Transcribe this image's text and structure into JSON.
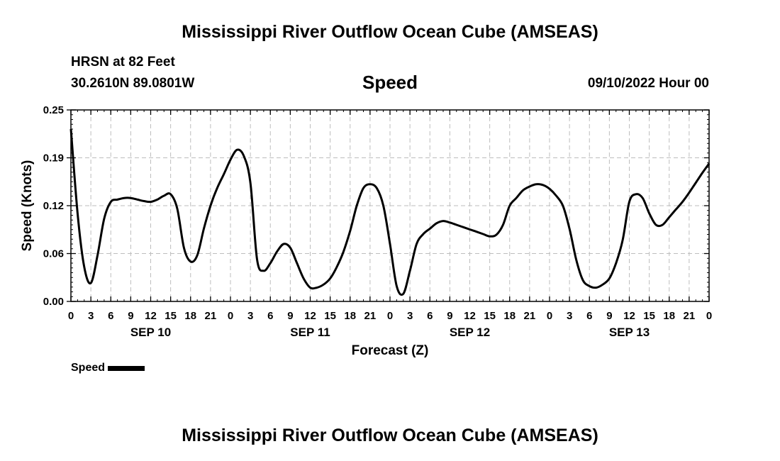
{
  "page": {
    "title": "Mississippi River Outflow Ocean Cube (AMSEAS)",
    "title_repeat": "Mississippi River Outflow Ocean Cube (AMSEAS)",
    "station": "HRSN at 82 Feet",
    "coords": "30.2610N  89.0801W",
    "datetime": "09/10/2022 Hour 00"
  },
  "chart_data": {
    "type": "line",
    "title": "Speed",
    "xlabel": "Forecast (Z)",
    "ylabel": "Speed (Knots)",
    "ylim": [
      0,
      0.25
    ],
    "xlim": [
      0,
      96
    ],
    "y_ticks": [
      "0.00",
      "0.06",
      "0.12",
      "0.19",
      "0.25"
    ],
    "y_tick_values": [
      0,
      0.0625,
      0.125,
      0.1875,
      0.25
    ],
    "x_ticks": [
      "0",
      "3",
      "6",
      "9",
      "12",
      "15",
      "18",
      "21",
      "0",
      "3",
      "6",
      "9",
      "12",
      "15",
      "18",
      "21",
      "0",
      "3",
      "6",
      "9",
      "12",
      "15",
      "18",
      "21",
      "0",
      "3",
      "6",
      "9",
      "12",
      "15",
      "18",
      "21",
      "0"
    ],
    "x_tick_hours": [
      0,
      3,
      6,
      9,
      12,
      15,
      18,
      21,
      24,
      27,
      30,
      33,
      36,
      39,
      42,
      45,
      48,
      51,
      54,
      57,
      60,
      63,
      66,
      69,
      72,
      75,
      78,
      81,
      84,
      87,
      90,
      93,
      96
    ],
    "date_labels": [
      {
        "label": "SEP 10",
        "hour": 12
      },
      {
        "label": "SEP 11",
        "hour": 36
      },
      {
        "label": "SEP 12",
        "hour": 60
      },
      {
        "label": "SEP 13",
        "hour": 84
      }
    ],
    "grid": true,
    "legend_position": "bottom-left",
    "series": [
      {
        "name": "Speed",
        "color": "#000000",
        "x": [
          0,
          1,
          2,
          3,
          4,
          5,
          6,
          7,
          8,
          9,
          10,
          11,
          12,
          13,
          14,
          15,
          16,
          17,
          18,
          19,
          20,
          21,
          22,
          23,
          24,
          25,
          26,
          27,
          28,
          29,
          30,
          31,
          32,
          33,
          34,
          35,
          36,
          37,
          38,
          39,
          40,
          41,
          42,
          43,
          44,
          45,
          46,
          47,
          48,
          49,
          50,
          51,
          52,
          53,
          54,
          55,
          56,
          57,
          58,
          59,
          60,
          61,
          62,
          63,
          64,
          65,
          66,
          67,
          68,
          69,
          70,
          71,
          72,
          73,
          74,
          75,
          76,
          77,
          78,
          79,
          80,
          81,
          82,
          83,
          84,
          85,
          86,
          87,
          88,
          89,
          90,
          91,
          92,
          93,
          94,
          95,
          96
        ],
        "y": [
          0.225,
          0.115,
          0.045,
          0.024,
          0.06,
          0.108,
          0.13,
          0.133,
          0.135,
          0.135,
          0.133,
          0.131,
          0.13,
          0.133,
          0.138,
          0.14,
          0.121,
          0.07,
          0.052,
          0.06,
          0.095,
          0.125,
          0.148,
          0.166,
          0.185,
          0.198,
          0.19,
          0.155,
          0.055,
          0.04,
          0.05,
          0.065,
          0.075,
          0.07,
          0.05,
          0.03,
          0.018,
          0.018,
          0.022,
          0.03,
          0.045,
          0.065,
          0.092,
          0.125,
          0.148,
          0.153,
          0.148,
          0.125,
          0.075,
          0.02,
          0.01,
          0.04,
          0.075,
          0.088,
          0.095,
          0.102,
          0.105,
          0.103,
          0.1,
          0.097,
          0.094,
          0.091,
          0.088,
          0.085,
          0.087,
          0.1,
          0.125,
          0.135,
          0.145,
          0.15,
          0.153,
          0.152,
          0.147,
          0.138,
          0.125,
          0.095,
          0.055,
          0.028,
          0.02,
          0.018,
          0.022,
          0.03,
          0.05,
          0.08,
          0.13,
          0.14,
          0.135,
          0.115,
          0.1,
          0.1,
          0.11,
          0.12,
          0.13,
          0.142,
          0.155,
          0.168,
          0.18
        ]
      }
    ]
  }
}
